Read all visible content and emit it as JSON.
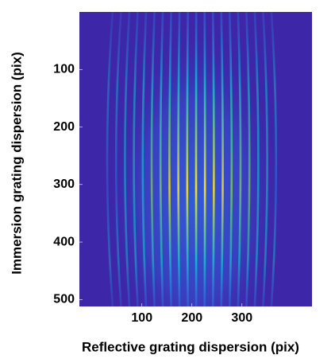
{
  "chart_data": {
    "type": "image",
    "xlabel": "Reflective grating dispersion (pix)",
    "ylabel": "Immersion grating dispersion (pix)",
    "xlim": [
      -25,
      440
    ],
    "xticks": [
      100,
      200,
      300
    ],
    "ylim": [
      0,
      512
    ],
    "yticks": [
      100,
      200,
      300,
      400,
      500
    ],
    "y_reversed": true,
    "colormap": [
      "#3e26a8",
      "#2f6ce8",
      "#12bed0",
      "#7ecf5a",
      "#f9e11e"
    ]
  }
}
